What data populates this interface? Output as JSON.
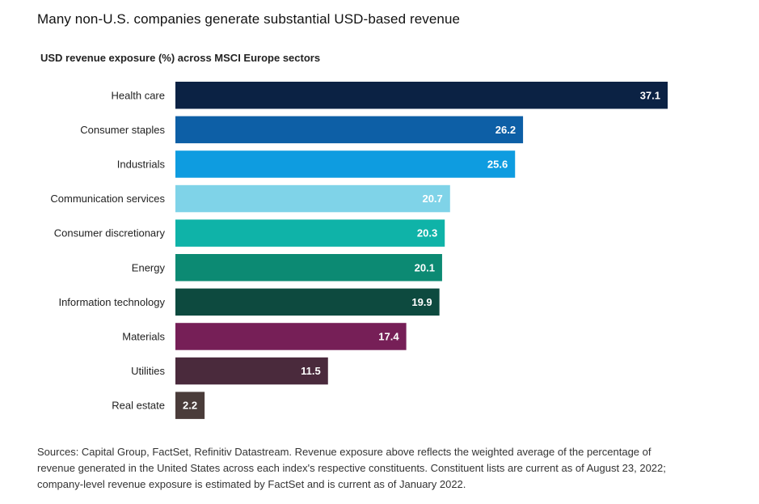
{
  "title": "Many non-U.S. companies generate substantial USD-based revenue",
  "footnote": "Sources: Capital Group, FactSet, Refinitiv Datastream. Revenue exposure above reflects the weighted average of the percentage of revenue generated in the United States across each index's respective constituents. Constituent lists are current as of August 23, 2022; company-level revenue exposure is estimated by FactSet and is current as of January 2022.",
  "chart_data": {
    "type": "bar",
    "orientation": "horizontal",
    "title": "USD revenue exposure (%) across MSCI Europe sectors",
    "xlabel": "",
    "ylabel": "",
    "xlim": [
      0,
      37.1
    ],
    "grid": false,
    "legend": "none",
    "categories": [
      "Health care",
      "Consumer staples",
      "Industrials",
      "Communication services",
      "Consumer discretionary",
      "Energy",
      "Information technology",
      "Materials",
      "Utilities",
      "Real estate"
    ],
    "values": [
      37.1,
      26.2,
      25.6,
      20.7,
      20.3,
      20.1,
      19.9,
      17.4,
      11.5,
      2.2
    ],
    "value_labels": [
      "37.1",
      "26.2",
      "25.6",
      "20.7",
      "20.3",
      "20.1",
      "19.9",
      "17.4",
      "11.5",
      "2.2"
    ],
    "colors": [
      "#0b2244",
      "#0d5fa6",
      "#0e9ce0",
      "#7fd3e8",
      "#0fb3a8",
      "#0c8a73",
      "#0d4a3f",
      "#761f57",
      "#4a2a3c",
      "#4a3c3a"
    ]
  }
}
